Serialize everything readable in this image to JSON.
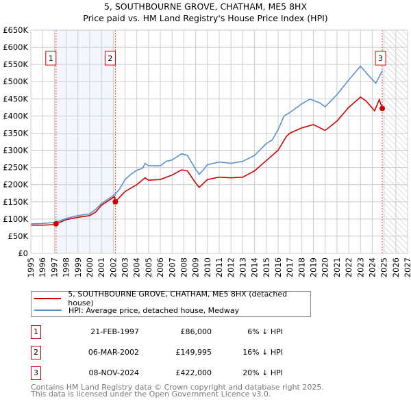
{
  "chart_data": {
    "type": "line",
    "title": "5, SOUTHBOURNE GROVE, CHATHAM, ME5 8HX",
    "subtitle": "Price paid vs. HM Land Registry's House Price Index (HPI)",
    "xlim": [
      1995,
      2027
    ],
    "ylim": [
      0,
      650000
    ],
    "x_ticks": [
      "1995",
      "1996",
      "1997",
      "1998",
      "1999",
      "2000",
      "2001",
      "2002",
      "2003",
      "2004",
      "2005",
      "2006",
      "2007",
      "2008",
      "2009",
      "2010",
      "2011",
      "2012",
      "2013",
      "2014",
      "2015",
      "2016",
      "2017",
      "2018",
      "2019",
      "2020",
      "2021",
      "2022",
      "2023",
      "2024",
      "2025",
      "2026",
      "2027"
    ],
    "y_ticks": [
      "£0",
      "£50K",
      "£100K",
      "£150K",
      "£200K",
      "£250K",
      "£300K",
      "£350K",
      "£400K",
      "£450K",
      "£500K",
      "£550K",
      "£600K",
      "£650K"
    ],
    "grid": true,
    "series": [
      {
        "name": "5, SOUTHBOURNE GROVE, CHATHAM, ME5 8HX (detached house)",
        "color": "#cc0000",
        "x": [
          1995,
          1996,
          1997.1,
          1997.14,
          1998,
          1999,
          2000,
          2000.5,
          2001,
          2002.1,
          2002.18,
          2003,
          2004,
          2004.7,
          2005,
          2006,
          2007,
          2007.8,
          2008.3,
          2009,
          2009.3,
          2010,
          2011,
          2012,
          2013,
          2014,
          2015,
          2016,
          2016.7,
          2017,
          2018,
          2019,
          2020,
          2021,
          2022,
          2023,
          2023.5,
          2024.2,
          2024.6,
          2024.85
        ],
        "y": [
          82,
          82,
          84,
          86,
          98,
          105,
          110,
          120,
          140,
          165,
          150,
          180,
          200,
          220,
          213,
          215,
          228,
          243,
          240,
          205,
          192,
          215,
          222,
          220,
          222,
          240,
          270,
          300,
          340,
          350,
          365,
          375,
          358,
          385,
          425,
          455,
          443,
          415,
          448,
          422
        ]
      },
      {
        "name": "HPI: Average price, detached house, Medway",
        "color": "#5b8fd4",
        "x": [
          1995,
          1996,
          1997,
          1997.5,
          1998,
          1999,
          2000,
          2000.5,
          2001,
          2002,
          2002.5,
          2003,
          2003.5,
          2004,
          2004.5,
          2004.7,
          2005,
          2006,
          2006.5,
          2007,
          2007.8,
          2008.3,
          2009,
          2009.3,
          2009.7,
          2010,
          2011,
          2012,
          2013,
          2014,
          2015,
          2015.5,
          2016,
          2016.5,
          2017,
          2018,
          2018.7,
          2019.5,
          2020,
          2021,
          2022,
          2023,
          2023.5,
          2024.3,
          2024.85
        ],
        "y": [
          86,
          87,
          90,
          95,
          102,
          110,
          115,
          128,
          145,
          168,
          185,
          215,
          230,
          242,
          248,
          262,
          255,
          255,
          268,
          272,
          290,
          285,
          245,
          230,
          245,
          258,
          266,
          262,
          268,
          285,
          320,
          330,
          360,
          400,
          410,
          435,
          449,
          439,
          427,
          462,
          505,
          545,
          525,
          495,
          532
        ]
      }
    ],
    "y_unit": "thousand GBP",
    "sales": [
      {
        "label": "1",
        "x": 1997.14,
        "y": 86
      },
      {
        "label": "2",
        "x": 2002.18,
        "y": 149.995
      },
      {
        "label": "3",
        "x": 2024.85,
        "y": 422
      }
    ],
    "shaded_range": [
      1997.14,
      2002.18
    ],
    "forecast_hatch_from": 2025
  },
  "legend": {
    "items": [
      {
        "label": "5, SOUTHBOURNE GROVE, CHATHAM, ME5 8HX (detached house)",
        "color": "#cc0000"
      },
      {
        "label": "HPI: Average price, detached house, Medway",
        "color": "#5b8fd4"
      }
    ]
  },
  "transactions": [
    {
      "num": "1",
      "date": "21-FEB-1997",
      "price": "£86,000",
      "hpi": "6% ↓ HPI"
    },
    {
      "num": "2",
      "date": "06-MAR-2002",
      "price": "£149,995",
      "hpi": "16% ↓ HPI"
    },
    {
      "num": "3",
      "date": "08-NOV-2024",
      "price": "£422,000",
      "hpi": "20% ↓ HPI"
    }
  ],
  "footer": {
    "line1": "Contains HM Land Registry data © Crown copyright and database right 2025.",
    "line2": "This data is licensed under the Open Government Licence v3.0."
  }
}
